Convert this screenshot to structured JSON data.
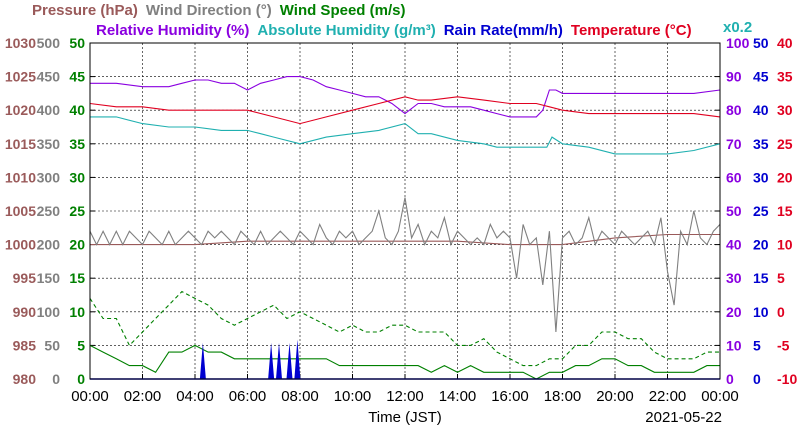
{
  "chart_data": {
    "type": "line",
    "title_rows": [
      [
        {
          "text": "Pressure (hPa)",
          "color": "#9a5a5a"
        },
        {
          "text": "Wind Direction (°)",
          "color": "#808080"
        },
        {
          "text": "Wind Speed (m/s)",
          "color": "#008000"
        }
      ],
      [
        {
          "text": "Relative Humidity (%)",
          "color": "#8a00e0"
        },
        {
          "text": "Absolute Humidity (g/m³)",
          "color": "#20b0b0"
        },
        {
          "text": "Rain Rate(mm/h)",
          "color": "#0000d0"
        },
        {
          "text": "Temperature (°C)",
          "color": "#e00020"
        }
      ]
    ],
    "right_scale_note": {
      "text": "x0.2",
      "color": "#20b0b0"
    },
    "xlabel": "Time (JST)",
    "date": "2021-05-22",
    "x_ticks": [
      "00:00",
      "02:00",
      "04:00",
      "06:00",
      "08:00",
      "10:00",
      "12:00",
      "14:00",
      "16:00",
      "18:00",
      "20:00",
      "22:00",
      "00:00"
    ],
    "grid": true,
    "left_axes": [
      {
        "name": "Pressure",
        "color": "#9a5a5a",
        "ticks": [
          "980",
          "985",
          "990",
          "995",
          "1000",
          "1005",
          "1010",
          "1015",
          "1020",
          "1025",
          "1030"
        ]
      },
      {
        "name": "Wind Direction",
        "color": "#808080",
        "ticks": [
          "0",
          "50",
          "100",
          "150",
          "200",
          "250",
          "300",
          "350",
          "400",
          "450",
          "500"
        ]
      },
      {
        "name": "Wind Speed",
        "color": "#008000",
        "ticks": [
          "0",
          "5",
          "10",
          "15",
          "20",
          "25",
          "30",
          "35",
          "40",
          "45",
          "50"
        ]
      }
    ],
    "right_axes": [
      {
        "name": "Relative Humidity",
        "color": "#8a00e0",
        "ticks": [
          "0",
          "10",
          "20",
          "30",
          "40",
          "50",
          "60",
          "70",
          "80",
          "90",
          "100"
        ]
      },
      {
        "name": "Rain Rate",
        "color": "#0000d0",
        "ticks": [
          "0",
          "5",
          "10",
          "15",
          "20",
          "25",
          "30",
          "35",
          "40",
          "45",
          "50"
        ]
      },
      {
        "name": "Temperature",
        "color": "#e00020",
        "ticks": [
          "-10",
          "-5",
          "0",
          "5",
          "10",
          "15",
          "20",
          "25",
          "30",
          "35",
          "40"
        ]
      }
    ],
    "x_range_hours": [
      0,
      24
    ],
    "y_range_relative_humidity_pct": [
      0,
      100
    ],
    "series": [
      {
        "name": "Relative Humidity",
        "units": "%",
        "color": "#8a00e0",
        "x": [
          0,
          0.5,
          1,
          2,
          3,
          3.5,
          4,
          4.5,
          5,
          5.5,
          6,
          6.5,
          7,
          7.5,
          8,
          8.5,
          9,
          9.5,
          10,
          10.5,
          11,
          11.5,
          12,
          12.5,
          13,
          13.5,
          14,
          14.5,
          15,
          15.5,
          16,
          16.5,
          17,
          17.25,
          17.5,
          17.75,
          18,
          19,
          20,
          21,
          22,
          23,
          24
        ],
        "y": [
          88,
          88,
          88,
          87,
          87,
          88,
          89,
          89,
          88,
          88,
          86,
          88,
          89,
          90,
          90,
          89,
          87,
          86,
          85,
          84,
          84,
          82,
          79,
          82,
          82,
          81,
          81,
          81,
          80,
          79,
          78,
          78,
          78,
          80,
          86,
          86,
          85,
          85,
          85,
          85,
          85,
          85,
          86
        ]
      },
      {
        "name": "Absolute Humidity",
        "units": "g/m³ (x0.2 on right scale)",
        "color": "#20b0b0",
        "x": [
          0,
          1,
          2,
          3,
          4,
          5,
          6,
          6.5,
          7,
          8,
          9,
          10,
          11,
          12,
          12.5,
          13,
          14,
          15,
          15.5,
          16,
          17,
          17.4,
          17.6,
          18,
          19,
          20,
          21,
          22,
          23,
          24
        ],
        "y": [
          78,
          78,
          76,
          75,
          75,
          74,
          74,
          73,
          72,
          70,
          72,
          73,
          74,
          76,
          73,
          73,
          71,
          70,
          69,
          69,
          69,
          69,
          72,
          70,
          69,
          67,
          67,
          67,
          68,
          70
        ]
      },
      {
        "name": "Temperature",
        "units": "°C",
        "color": "#e00020",
        "x": [
          0,
          1,
          2,
          3,
          4,
          5,
          6,
          7,
          8,
          9,
          10,
          11,
          12,
          12.5,
          13,
          14,
          15,
          16,
          17,
          17.5,
          18,
          19,
          20,
          21,
          22,
          23,
          24
        ],
        "y": [
          31,
          30.5,
          30.5,
          30,
          30,
          30,
          30,
          29,
          28,
          29,
          30,
          31,
          32,
          31.5,
          31.5,
          32,
          31.5,
          31,
          31,
          30.5,
          30,
          29.5,
          29.5,
          29.5,
          29.5,
          29.5,
          29
        ]
      },
      {
        "name": "Pressure",
        "units": "hPa",
        "color": "#9a5a5a",
        "x": [
          0,
          2,
          4,
          6,
          8,
          10,
          12,
          14,
          16,
          18,
          20,
          22,
          24
        ],
        "y": [
          1000,
          1000,
          1000,
          1000.5,
          1000.5,
          1000.5,
          1000.5,
          1000.5,
          1000,
          1000,
          1001,
          1001.5,
          1001.5
        ]
      },
      {
        "name": "Wind Direction",
        "units": "°",
        "color": "#808080",
        "x": [
          0,
          0.25,
          0.5,
          0.75,
          1,
          1.25,
          1.5,
          1.75,
          2,
          2.25,
          2.5,
          2.75,
          3,
          3.25,
          3.5,
          3.75,
          4,
          4.25,
          4.5,
          4.75,
          5,
          5.25,
          5.5,
          5.75,
          6,
          6.25,
          6.5,
          6.75,
          7,
          7.25,
          7.5,
          7.75,
          8,
          8.25,
          8.5,
          8.75,
          9,
          9.25,
          9.5,
          9.75,
          10,
          10.25,
          10.5,
          10.75,
          11,
          11.25,
          11.5,
          11.75,
          12,
          12.25,
          12.5,
          12.75,
          13,
          13.25,
          13.5,
          13.75,
          14,
          14.25,
          14.5,
          14.75,
          15,
          15.25,
          15.5,
          15.75,
          16,
          16.25,
          16.5,
          16.75,
          17,
          17.25,
          17.5,
          17.75,
          18,
          18.25,
          18.5,
          18.75,
          19,
          19.25,
          19.5,
          19.75,
          20,
          20.25,
          20.5,
          20.75,
          21,
          21.25,
          21.5,
          21.75,
          22,
          22.25,
          22.5,
          22.75,
          23,
          23.25,
          23.5,
          23.75,
          24
        ],
        "y": [
          220,
          200,
          220,
          200,
          220,
          200,
          220,
          210,
          200,
          220,
          210,
          200,
          220,
          200,
          210,
          220,
          210,
          200,
          220,
          210,
          220,
          210,
          200,
          220,
          210,
          200,
          220,
          200,
          210,
          220,
          210,
          200,
          220,
          210,
          200,
          230,
          210,
          200,
          220,
          210,
          220,
          200,
          210,
          220,
          250,
          210,
          200,
          220,
          270,
          210,
          230,
          200,
          220,
          210,
          240,
          200,
          220,
          210,
          200,
          210,
          200,
          230,
          210,
          220,
          210,
          150,
          230,
          200,
          210,
          140,
          220,
          70,
          210,
          220,
          200,
          210,
          240,
          200,
          220,
          210,
          200,
          220,
          210,
          200,
          210,
          220,
          200,
          240,
          160,
          110,
          220,
          200,
          250,
          210,
          200,
          220,
          230
        ]
      },
      {
        "name": "Wind Speed",
        "units": "m/s",
        "color": "#008000",
        "x": [
          0,
          0.5,
          1,
          1.5,
          2,
          2.5,
          3,
          3.5,
          4,
          4.5,
          5,
          5.5,
          6,
          6.5,
          7,
          7.5,
          8,
          8.5,
          9,
          9.5,
          10,
          10.5,
          11,
          11.5,
          12,
          12.5,
          13,
          13.5,
          14,
          14.5,
          15,
          15.5,
          16,
          16.5,
          17,
          17.5,
          18,
          18.5,
          19,
          19.5,
          20,
          20.5,
          21,
          21.5,
          22,
          22.5,
          23,
          23.5,
          24
        ],
        "y": [
          5,
          4,
          3,
          2,
          2,
          1,
          4,
          4,
          5,
          4,
          4,
          3,
          3,
          3,
          3,
          3,
          3,
          3,
          3,
          2,
          2,
          2,
          2,
          2,
          2,
          2,
          1,
          2,
          1,
          2,
          1,
          1,
          1,
          1,
          0,
          1,
          1,
          2,
          2,
          3,
          3,
          2,
          2,
          1,
          1,
          1,
          1,
          2,
          2
        ]
      },
      {
        "name": "Wind Speed Max",
        "units": "m/s",
        "color": "#008000",
        "dashed": true,
        "x": [
          0,
          0.5,
          1,
          1.5,
          2,
          2.5,
          3,
          3.5,
          4,
          4.5,
          5,
          5.5,
          6,
          6.5,
          7,
          7.5,
          8,
          8.5,
          9,
          9.5,
          10,
          10.5,
          11,
          11.5,
          12,
          12.5,
          13,
          13.5,
          14,
          14.5,
          15,
          15.5,
          16,
          16.5,
          17,
          17.5,
          18,
          18.5,
          19,
          19.5,
          20,
          20.5,
          21,
          21.5,
          22,
          22.5,
          23,
          23.5,
          24
        ],
        "y": [
          12,
          9,
          9,
          5,
          7,
          9,
          11,
          13,
          12,
          11,
          9,
          8,
          9,
          10,
          11,
          9,
          10,
          9,
          8,
          7,
          8,
          7,
          7,
          8,
          8,
          7,
          7,
          7,
          5,
          5,
          6,
          4,
          3,
          2,
          2,
          3,
          3,
          5,
          5,
          7,
          7,
          6,
          6,
          4,
          3,
          3,
          3,
          4,
          4
        ]
      },
      {
        "name": "Rain Rate",
        "units": "mm/h",
        "color": "#0000d0",
        "x": [
          4.3,
          6.9,
          7.2,
          7.6,
          7.9
        ],
        "y": [
          3,
          3,
          3,
          3,
          3.5
        ]
      }
    ]
  }
}
